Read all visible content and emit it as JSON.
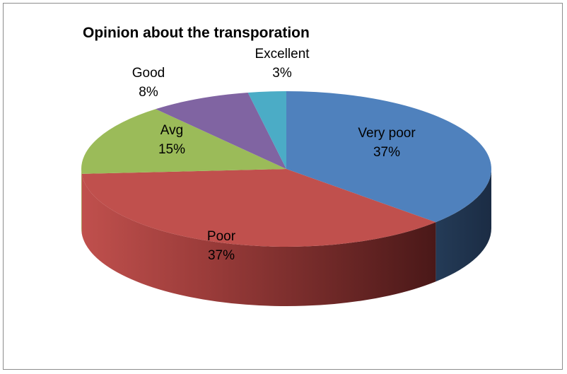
{
  "chart_data": {
    "type": "pie",
    "title": "Opinion about the transporation",
    "categories": [
      "Very poor",
      "Poor",
      "Avg",
      "Good",
      "Excellent"
    ],
    "values": [
      37,
      37,
      15,
      8,
      3
    ],
    "value_labels": [
      "37%",
      "37%",
      "15%",
      "8%",
      "3%"
    ],
    "colors": [
      "#4f81bd",
      "#c0504d",
      "#9bbb59",
      "#8064a2",
      "#4bacc6"
    ],
    "style": "3d",
    "legend": "none",
    "data_labels": "category and percent"
  }
}
